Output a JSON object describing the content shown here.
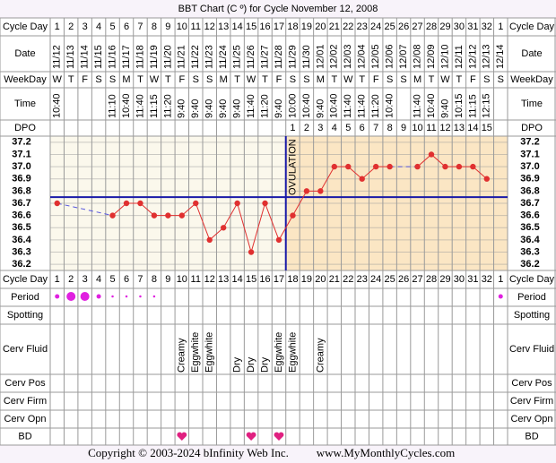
{
  "chart_data": {
    "type": "line",
    "title": "BBT Chart (C º) for Cycle November 12, 2008",
    "rows": [
      "Cycle Day",
      "Date",
      "WeekDay",
      "Time",
      "DPO",
      "Cycle Day",
      "Period",
      "Spotting",
      "Cerv Fluid",
      "Cerv Pos",
      "Cerv Firm",
      "Cerv Opn",
      "BD"
    ],
    "categories": [
      1,
      2,
      3,
      4,
      5,
      6,
      7,
      8,
      9,
      10,
      11,
      12,
      13,
      14,
      15,
      16,
      17,
      18,
      19,
      20,
      21,
      22,
      23,
      24,
      25,
      26,
      27,
      28,
      29,
      30,
      31,
      32,
      1
    ],
    "dates": [
      "11/12",
      "11/13",
      "11/14",
      "11/15",
      "11/16",
      "11/17",
      "11/18",
      "11/19",
      "11/20",
      "11/21",
      "11/22",
      "11/23",
      "11/24",
      "11/25",
      "11/26",
      "11/27",
      "11/28",
      "11/29",
      "11/30",
      "12/01",
      "12/02",
      "12/03",
      "12/04",
      "12/05",
      "12/06",
      "12/07",
      "12/08",
      "12/09",
      "12/10",
      "12/11",
      "12/12",
      "12/13",
      "12/14"
    ],
    "weekdays": [
      "W",
      "T",
      "F",
      "S",
      "S",
      "M",
      "T",
      "W",
      "T",
      "F",
      "S",
      "S",
      "M",
      "T",
      "W",
      "T",
      "F",
      "S",
      "S",
      "M",
      "T",
      "W",
      "T",
      "F",
      "S",
      "S",
      "M",
      "T",
      "W",
      "T",
      "F",
      "S",
      "S"
    ],
    "times": [
      "10:40",
      null,
      null,
      null,
      "11:10",
      "10:40",
      "11:40",
      "11:15",
      "11:20",
      "9:40",
      "9:40",
      "9:40",
      "9:40",
      "9:40",
      "11:40",
      "11:20",
      "9:40",
      "10:00",
      "10:40",
      "9:40",
      "10:40",
      "11:40",
      "11:40",
      "11:20",
      "10:40",
      null,
      "11:40",
      "10:40",
      "9:40",
      "10:15",
      "11:15",
      "12:15",
      null
    ],
    "dpo": [
      null,
      null,
      null,
      null,
      null,
      null,
      null,
      null,
      null,
      null,
      null,
      null,
      null,
      null,
      null,
      null,
      null,
      1,
      2,
      3,
      4,
      5,
      6,
      7,
      8,
      9,
      10,
      11,
      12,
      13,
      14,
      15,
      null
    ],
    "values": [
      36.7,
      null,
      null,
      null,
      36.6,
      36.7,
      36.7,
      36.6,
      36.6,
      36.6,
      36.7,
      36.4,
      36.5,
      36.7,
      36.3,
      36.7,
      36.4,
      36.6,
      36.8,
      36.8,
      37.0,
      37.0,
      36.9,
      37.0,
      37.0,
      null,
      37.0,
      37.1,
      37.0,
      37.0,
      37.0,
      36.9,
      null
    ],
    "color": "#e03030",
    "ylim": [
      36.15,
      37.25
    ],
    "yticks": [
      37.2,
      37.1,
      {
        "value": 37.0,
        "label": "37.0"
      },
      36.9,
      36.8,
      36.7,
      36.6,
      36.5,
      36.4,
      36.3,
      36.2
    ],
    "grid": true,
    "coverline": 36.75,
    "ovulation_day": 17,
    "ovulation_label": "OVULATION",
    "period": [
      1,
      2,
      2,
      1,
      0.5,
      0.5,
      0.5,
      0.5,
      null,
      null,
      null,
      null,
      null,
      null,
      null,
      null,
      null,
      null,
      null,
      null,
      null,
      null,
      null,
      null,
      null,
      null,
      null,
      null,
      null,
      null,
      null,
      null,
      1
    ],
    "cerv_fluid": [
      null,
      null,
      null,
      null,
      null,
      null,
      null,
      null,
      null,
      "Creamy",
      "Eggwhite",
      "Eggwhite",
      null,
      "Dry",
      "Dry",
      "Dry",
      "Eggwhite",
      "Eggwhite",
      null,
      "Creamy",
      null,
      null,
      null,
      null,
      null,
      null,
      null,
      null,
      null,
      null,
      null,
      null,
      null
    ],
    "bd": [
      10,
      15,
      17
    ],
    "footer": {
      "copyright": "Copyright © 2003-2024 bInfinity Web Inc.",
      "site": "www.MyMonthlyCycles.com"
    }
  }
}
